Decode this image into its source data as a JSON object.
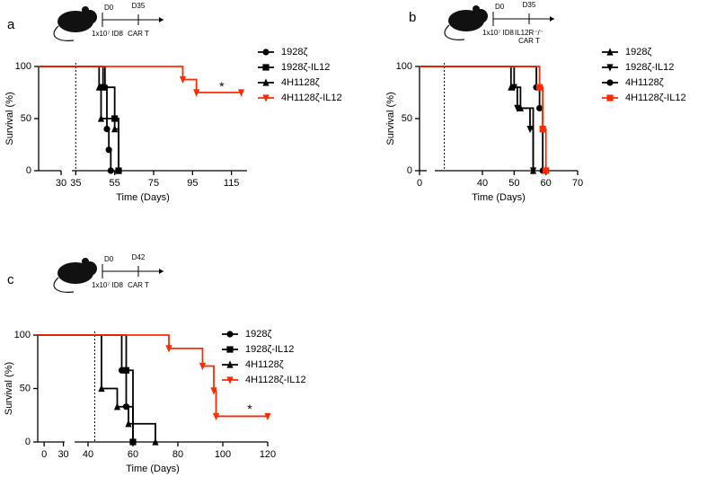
{
  "chart_data": [
    {
      "type": "line",
      "panel": "a",
      "xlabel": "Time (Days)",
      "ylabel": "Survival (%)",
      "segments": [
        {
          "xlim": [
            20,
            30
          ],
          "xticks": [
            30
          ]
        },
        {
          "xlim": [
            33,
            123
          ],
          "xticks": [
            35,
            55,
            75,
            95,
            115
          ]
        }
      ],
      "ylim": [
        0,
        100
      ],
      "yticks": [
        0,
        50,
        100
      ],
      "vline": 35,
      "annotation": "*",
      "annotation_x": 110,
      "annotation_y": 80,
      "inset": {
        "start": "D0",
        "treat_day": "D35",
        "dose": "1x10⁷ ID8",
        "treat": [
          "CAR T"
        ]
      },
      "series": [
        {
          "name": "1928ζ",
          "color": "#000000",
          "marker": "circle",
          "x": [
            20,
            50,
            51,
            52,
            53
          ],
          "values": [
            100,
            80,
            40,
            20,
            0
          ]
        },
        {
          "name": "1928ζ-IL12",
          "color": "#000000",
          "marker": "square",
          "x": [
            20,
            49,
            55,
            57
          ],
          "values": [
            100,
            80,
            50,
            0
          ]
        },
        {
          "name": "4H1128ζ",
          "color": "#000000",
          "marker": "triangle-up",
          "x": [
            20,
            47,
            48,
            55,
            57
          ],
          "values": [
            100,
            80,
            50,
            40,
            0
          ]
        },
        {
          "name": "4H1128ζ-IL12",
          "color": "#ff2a00",
          "marker": "triangle-down",
          "x": [
            20,
            90,
            97,
            120
          ],
          "values": [
            100,
            87.5,
            75,
            75
          ]
        }
      ]
    },
    {
      "type": "line",
      "panel": "b",
      "xlabel": "Time (Days)",
      "ylabel": "Survival (%)",
      "segments": [
        {
          "xlim": [
            0,
            3
          ],
          "xticks": [
            0
          ]
        },
        {
          "xlim": [
            25,
            70
          ],
          "xticks": [
            40,
            50,
            60,
            70
          ]
        }
      ],
      "ylim": [
        0,
        100
      ],
      "yticks": [
        0,
        50,
        100
      ],
      "vline": 28,
      "inset": {
        "start": "D0",
        "treat_day": "D35",
        "dose": "1x10⁷ ID8",
        "treat": [
          "IL12R⁻/⁻",
          "CAR T"
        ]
      },
      "series": [
        {
          "name": "1928ζ",
          "color": "#000000",
          "marker": "triangle-up",
          "x": [
            0,
            49,
            52,
            56
          ],
          "values": [
            100,
            80,
            60,
            0
          ]
        },
        {
          "name": "1928ζ-IL12",
          "color": "#000000",
          "marker": "triangle-down",
          "x": [
            0,
            50,
            51,
            55,
            56
          ],
          "values": [
            100,
            80,
            60,
            40,
            0
          ]
        },
        {
          "name": "4H1128ζ",
          "color": "#000000",
          "marker": "circle",
          "x": [
            0,
            57,
            58,
            59
          ],
          "values": [
            100,
            80,
            60,
            0
          ]
        },
        {
          "name": "4H1128ζ-IL12",
          "color": "#ff2a00",
          "marker": "square",
          "x": [
            0,
            58,
            59,
            60
          ],
          "values": [
            100,
            80,
            40,
            0
          ]
        }
      ]
    },
    {
      "type": "line",
      "panel": "c",
      "xlabel": "Time (Days)",
      "ylabel": "Survival (%)",
      "segments": [
        {
          "xlim": [
            -10,
            32
          ],
          "xticks": [
            0,
            30
          ]
        },
        {
          "xlim": [
            34,
            120
          ],
          "xticks": [
            40,
            60,
            80,
            100,
            120
          ]
        }
      ],
      "ylim": [
        0,
        100
      ],
      "yticks": [
        0,
        50,
        100
      ],
      "vline": 43,
      "annotation": "*",
      "annotation_x": 112,
      "annotation_y": 30,
      "inset": {
        "start": "D0",
        "treat_day": "D42",
        "dose": "1x10⁷ ID8",
        "treat": [
          "CAR T"
        ]
      },
      "series": [
        {
          "name": "1928ζ",
          "color": "#000000",
          "marker": "circle",
          "x": [
            -10,
            55,
            57,
            60
          ],
          "values": [
            100,
            67,
            33,
            0
          ]
        },
        {
          "name": "1928ζ-IL12",
          "color": "#000000",
          "marker": "square",
          "x": [
            -10,
            57,
            60
          ],
          "values": [
            100,
            67,
            0
          ]
        },
        {
          "name": "4H1128ζ",
          "color": "#000000",
          "marker": "triangle-up",
          "x": [
            -10,
            46,
            53,
            58,
            70
          ],
          "values": [
            100,
            50,
            33,
            17,
            0
          ]
        },
        {
          "name": "4H1128ζ-IL12",
          "color": "#ff2a00",
          "marker": "triangle-down",
          "x": [
            -10,
            76,
            91,
            96,
            97,
            120
          ],
          "values": [
            100,
            87.5,
            71,
            48,
            24,
            24
          ]
        }
      ]
    }
  ]
}
